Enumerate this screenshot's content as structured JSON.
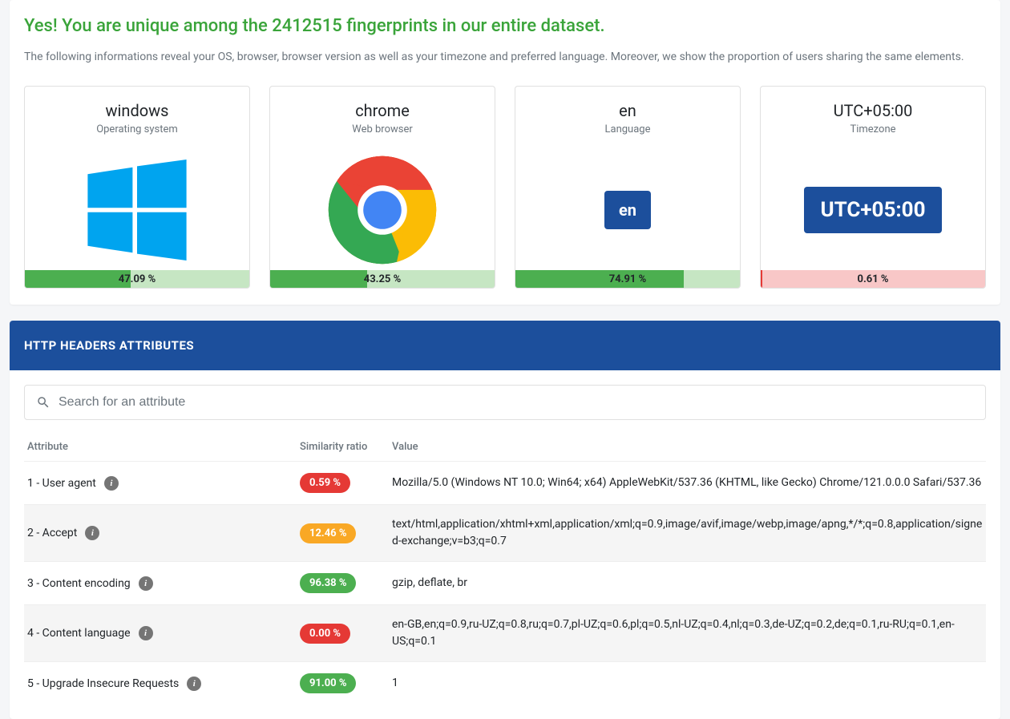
{
  "headline": "Yes! You are unique among the 2412515 fingerprints in our entire dataset.",
  "subtext": "The following informations reveal your OS, browser, browser version as well as your timezone and preferred language. Moreover, we show the proportion of users sharing the same elements.",
  "cards": [
    {
      "title": "windows",
      "subtitle": "Operating system",
      "icon": "windows",
      "percent_label": "47.09 %",
      "percent": 47.09,
      "bar_bg": "#c6e6c3",
      "bar_fill": "#4caf50"
    },
    {
      "title": "chrome",
      "subtitle": "Web browser",
      "icon": "chrome",
      "percent_label": "43.25 %",
      "percent": 43.25,
      "bar_bg": "#c6e6c3",
      "bar_fill": "#4caf50"
    },
    {
      "title": "en",
      "subtitle": "Language",
      "icon": "badge",
      "badge_text": "en",
      "percent_label": "74.91 %",
      "percent": 74.91,
      "bar_bg": "#c6e6c3",
      "bar_fill": "#4caf50"
    },
    {
      "title": "UTC+05:00",
      "subtitle": "Timezone",
      "icon": "badge",
      "badge_text": "UTC+05:00",
      "badge_big": true,
      "percent_label": "0.61 %",
      "percent": 0.61,
      "bar_bg": "#f8c7c7",
      "bar_fill": "#e53935"
    }
  ],
  "section_title": "HTTP HEADERS ATTRIBUTES",
  "search_placeholder": "Search for an attribute",
  "columns": {
    "attribute": "Attribute",
    "ratio": "Similarity ratio",
    "value": "Value"
  },
  "rows": [
    {
      "n": "1",
      "name": "User agent",
      "ratio": "0.59 %",
      "pill_color": "#e53935",
      "value": "Mozilla/5.0 (Windows NT 10.0; Win64; x64) AppleWebKit/537.36 (KHTML, like Gecko) Chrome/121.0.0.0 Safari/537.36",
      "alt": false
    },
    {
      "n": "2",
      "name": "Accept",
      "ratio": "12.46 %",
      "pill_color": "#f9a825",
      "value": "text/html,application/xhtml+xml,application/xml;q=0.9,image/avif,image/webp,image/apng,*/*;q=0.8,application/signed-exchange;v=b3;q=0.7",
      "alt": true
    },
    {
      "n": "3",
      "name": "Content encoding",
      "ratio": "96.38 %",
      "pill_color": "#4caf50",
      "value": "gzip, deflate, br",
      "alt": false
    },
    {
      "n": "4",
      "name": "Content language",
      "ratio": "0.00 %",
      "pill_color": "#e53935",
      "value": "en-GB,en;q=0.9,ru-UZ;q=0.8,ru;q=0.7,pl-UZ;q=0.6,pl;q=0.5,nl-UZ;q=0.4,nl;q=0.3,de-UZ;q=0.2,de;q=0.1,ru-RU;q=0.1,en-US;q=0.1",
      "alt": true
    },
    {
      "n": "5",
      "name": "Upgrade Insecure Requests",
      "ratio": "91.00 %",
      "pill_color": "#4caf50",
      "value": "1",
      "alt": false
    }
  ],
  "colors": {
    "windows_logo": "#00a4ef",
    "chrome_red": "#ea4335",
    "chrome_yellow": "#fbbc05",
    "chrome_green": "#34a853",
    "chrome_blue": "#4285f4",
    "header_bg": "#1c4f9c"
  }
}
